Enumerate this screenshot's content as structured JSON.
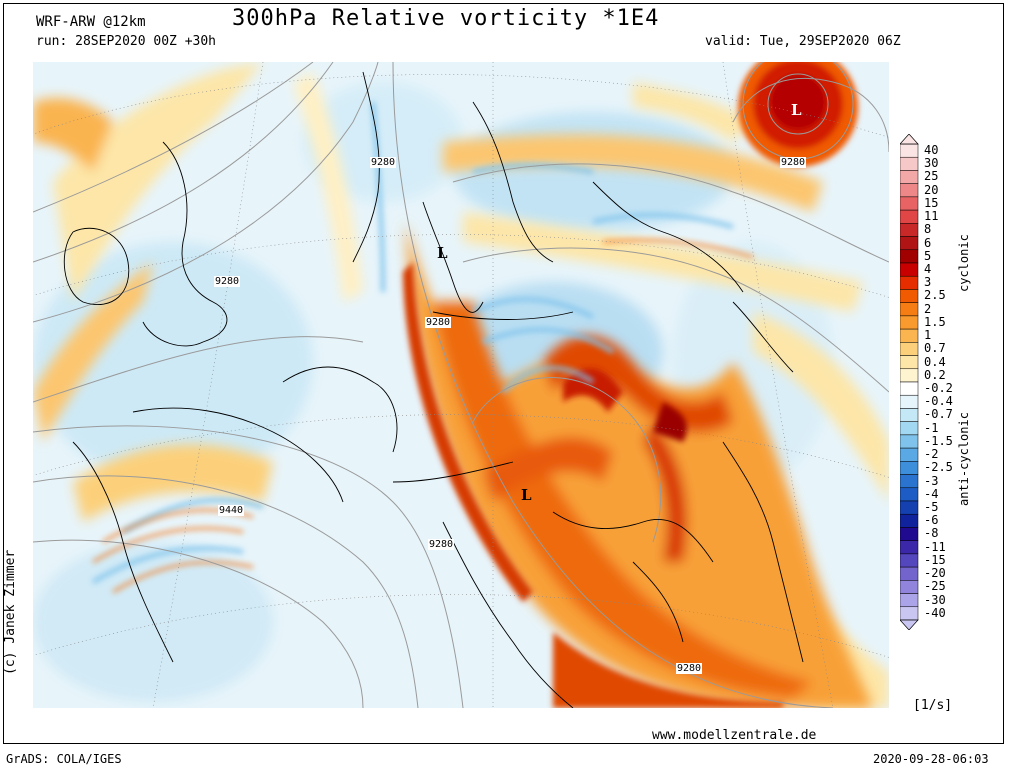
{
  "header": {
    "model": "WRF-ARW @12km",
    "title": "300hPa Relative vorticity *1E4",
    "run": "run: 28SEP2020 00Z +30h",
    "valid": "valid: Tue, 29SEP2020 06Z"
  },
  "map": {
    "isohypse_labels": [
      "9280",
      "9280",
      "9280",
      "9280",
      "9280",
      "9440",
      "9280",
      "9280"
    ],
    "low_markers": [
      "L",
      "L",
      "L"
    ]
  },
  "colorbar": {
    "levels": [
      "40",
      "30",
      "25",
      "20",
      "15",
      "11",
      "8",
      "6",
      "5",
      "4",
      "3",
      "2.5",
      "2",
      "1.5",
      "1",
      "0.7",
      "0.4",
      "0.2",
      "-0.2",
      "-0.4",
      "-0.7",
      "-1",
      "-1.5",
      "-2",
      "-2.5",
      "-3",
      "-4",
      "-5",
      "-6",
      "-8",
      "-11",
      "-15",
      "-20",
      "-25",
      "-30",
      "-40"
    ],
    "colors": [
      "#fbe4e4",
      "#f7c8c8",
      "#f3a8a8",
      "#ee8888",
      "#e86464",
      "#e04646",
      "#c82828",
      "#b01414",
      "#a00000",
      "#c80000",
      "#e62d00",
      "#f05a00",
      "#f57d14",
      "#f89a2e",
      "#fab450",
      "#fcd07a",
      "#fde6a8",
      "#fff4d0",
      "#ffffff",
      "#e6f5fb",
      "#c5e8f7",
      "#a3d8f2",
      "#7fc3ec",
      "#5ba9e4",
      "#3d8fdc",
      "#2a74d0",
      "#1c5cc4",
      "#1440b0",
      "#10229c",
      "#200a90",
      "#3a28a8",
      "#5446bc",
      "#7264cc",
      "#9084dc",
      "#aca4e8",
      "#cac6f2"
    ],
    "cyclonic_label": "cyclonic",
    "anticyclonic_label": "anti-cyclonic",
    "unit": "[1/s]"
  },
  "footer": {
    "credit": "(c) Janek Zimmer",
    "website": "www.modellzentrale.de",
    "software": "GrADS: COLA/IGES",
    "datestamp": "2020-09-28-06:03"
  }
}
